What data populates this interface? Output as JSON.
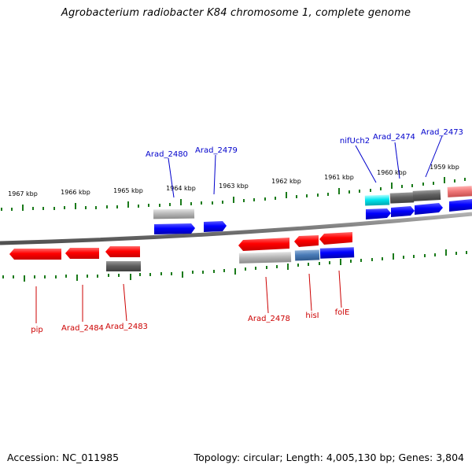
{
  "title": "Agrobacterium radiobacter K84 chromosome 1, complete genome",
  "footer": {
    "accession": "Accession: NC_011985",
    "summary": "Topology: circular; Length: 4,005,130 bp; Genes: 3,804"
  },
  "colors": {
    "forward_label": "#0000cc",
    "reverse_label": "#cc0000",
    "tick": "#1a7a1a",
    "backbone": "#808080"
  },
  "scale_ticks": [
    "1967 kbp",
    "1966 kbp",
    "1965 kbp",
    "1964 kbp",
    "1963 kbp",
    "1962 kbp",
    "1961 kbp",
    "1960 kbp",
    "1959 kbp"
  ],
  "gene_labels": {
    "forward": [
      "Arad_2480",
      "Arad_2479",
      "nifUch2",
      "Arad_2474",
      "Arad_2473"
    ],
    "reverse": [
      "pip",
      "Arad_2484",
      "Arad_2483",
      "Arad_2478",
      "hisI",
      "folE"
    ]
  }
}
